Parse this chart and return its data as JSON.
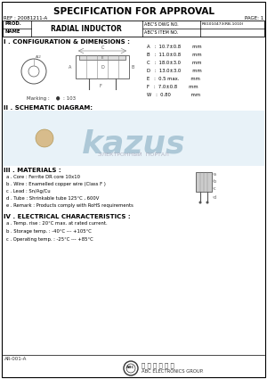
{
  "title": "SPECIFICATION FOR APPROVAL",
  "ref": "REF : 20081211-A",
  "page": "PAGE: 1",
  "prod_label": "PROD.",
  "name_label": "NAME",
  "prod_name": "RADIAL INDUCTOR",
  "abcs_dwg_no_label": "ABC'S DWG NO.",
  "abcs_item_no_label": "ABC'S ITEM NO.",
  "dwg_no_value": "RB1010473(RB-1010)",
  "item_no_value": "",
  "section1": "I . CONFIGURATION & DIMENSIONS :",
  "dim_A": "A   :  10.7±0.8        mm",
  "dim_B": "B   :  11.0±0.8        mm",
  "dim_C": "C   :  18.0±3.0        mm",
  "dim_D": "D   :  13.0±3.0        mm",
  "dim_E": "E   :  0.5 max.        mm",
  "dim_F": "F   :  7.0±0.8        mm",
  "dim_W": "W   :  0.80              mm",
  "marking": "Marking :    ●  : 103",
  "section2": "II . SCHEMATIC DIAGRAM:",
  "section3": "III . MATERIALS :",
  "mat_a": "a . Core : Ferrite DR core 10x10",
  "mat_b": "b . Wire : Enamelled copper wire (Class F )",
  "mat_c": "c . Lead : Sn/Ag/Cu",
  "mat_d": "d . Tube : Shrinkable tube 125°C , 600V",
  "mat_e": "e . Remark : Products comply with RoHS requirements",
  "section4": "IV . ELECTRICAL CHARACTERISTICS :",
  "elec_a": "a . Temp. rise : 20°C max. at rated current.",
  "elec_b": "b . Storage temp. : -40°C --- +105°C",
  "elec_c": "c . Operating temp. : -25°C --- +85°C",
  "footer_left": "AR-001-A",
  "company_name": "ABC ELECTRONICS GROUP.",
  "bg_color": "#ffffff",
  "text_color": "#000000",
  "kazus_color": "#99bbcc",
  "kazus_sub_color": "#aaaabb",
  "kazus_bg": "#e8f2f8"
}
